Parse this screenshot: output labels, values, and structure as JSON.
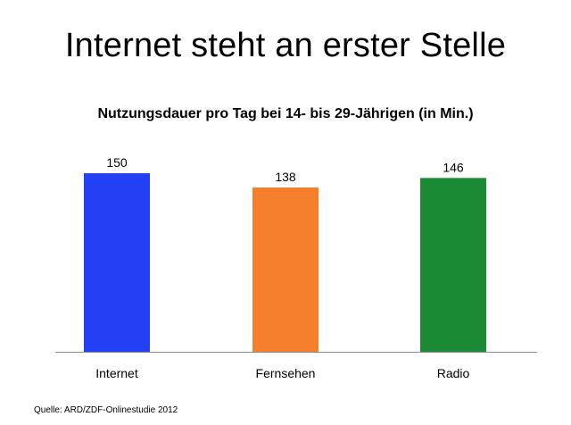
{
  "page": {
    "title": "Internet steht an erster Stelle",
    "source": "Quelle: ARD/ZDF-Onlinestudie 2012"
  },
  "chart_data": {
    "type": "bar",
    "title": "Nutzungsdauer pro Tag bei 14- bis 29-Jährigen (in Min.)",
    "xlabel": "",
    "ylabel": "",
    "categories": [
      "Internet",
      "Fernsehen",
      "Radio"
    ],
    "values": [
      150,
      138,
      146
    ],
    "value_labels": [
      "150",
      "138",
      "146"
    ],
    "colors": [
      "#2340f5",
      "#f57f2b",
      "#1a8a35"
    ],
    "ylim": [
      0,
      150
    ],
    "grid": false,
    "legend": "none"
  }
}
